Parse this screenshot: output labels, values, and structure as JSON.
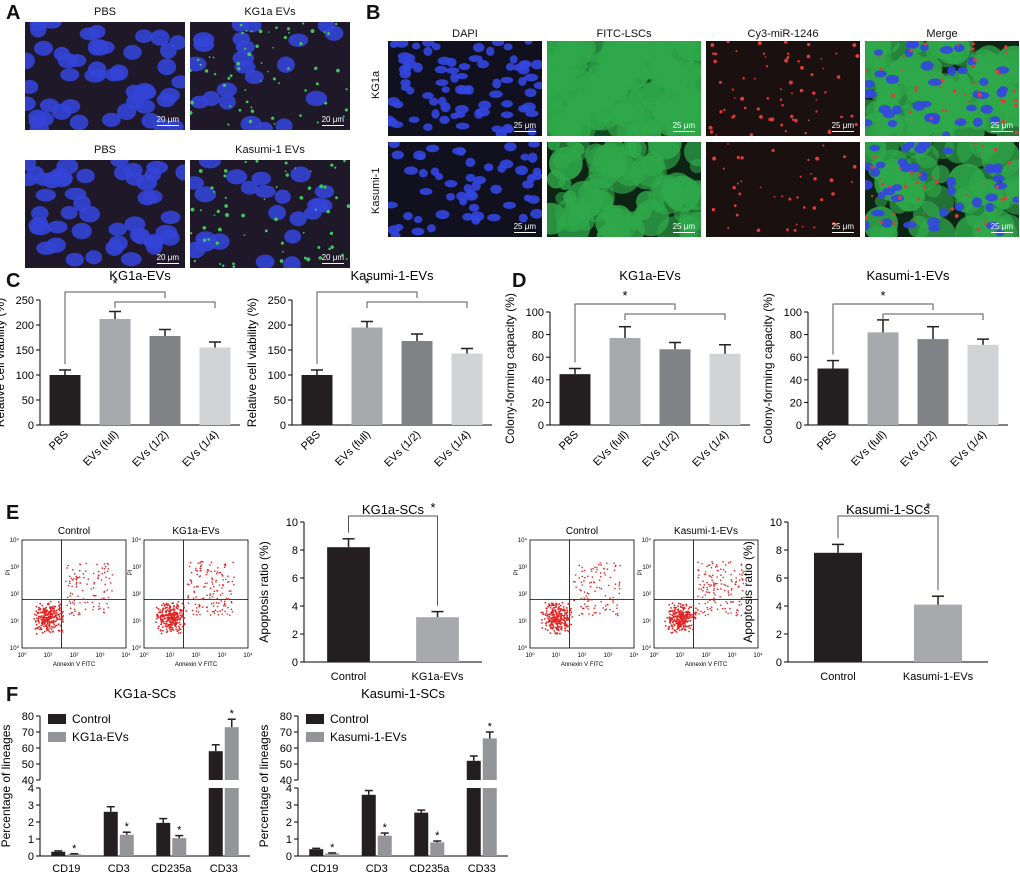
{
  "panels": [
    "A",
    "B",
    "C",
    "D",
    "E",
    "F"
  ],
  "panel_a": {
    "images": [
      {
        "title": "PBS",
        "kind": "pbs",
        "scale": "20 μm"
      },
      {
        "title": "KG1a EVs",
        "kind": "evs",
        "scale": "20 μm"
      },
      {
        "title": "PBS",
        "kind": "pbs",
        "scale": "20 μm"
      },
      {
        "title": "Kasumi-1 EVs",
        "kind": "evs",
        "scale": "20 μm"
      }
    ]
  },
  "panel_b": {
    "columns": [
      "DAPI",
      "FITC-LSCs",
      "Cy3-miR-1246",
      "Merge"
    ],
    "rows": [
      "KG1a",
      "Kasumi-1"
    ],
    "scale": "25 μm"
  },
  "chart_data": [
    {
      "id": "C1",
      "type": "bar",
      "title": "KG1a-EVs",
      "ylabel": "Relative cell viability (%)",
      "categories": [
        "PBS",
        "EVs (full)",
        "EVs (1/2)",
        "EVs (1/4)"
      ],
      "values": [
        100,
        212,
        178,
        155
      ],
      "errors": [
        10,
        15,
        13,
        11
      ],
      "ylim": [
        0,
        250
      ],
      "yticks": [
        0,
        50,
        100,
        150,
        200,
        250
      ],
      "colors": [
        "#231f20",
        "#a7a9ac",
        "#808285",
        "#d1d3d4"
      ],
      "significance": "*"
    },
    {
      "id": "C2",
      "type": "bar",
      "title": "Kasumi-1-EVs",
      "ylabel": "Relative cell viability (%)",
      "categories": [
        "PBS",
        "EVs (full)",
        "EVs (1/2)",
        "EVs (1/4)"
      ],
      "values": [
        100,
        195,
        168,
        143
      ],
      "errors": [
        10,
        12,
        14,
        10
      ],
      "ylim": [
        0,
        250
      ],
      "yticks": [
        0,
        50,
        100,
        150,
        200,
        250
      ],
      "colors": [
        "#231f20",
        "#a7a9ac",
        "#808285",
        "#d1d3d4"
      ],
      "significance": "*"
    },
    {
      "id": "D1",
      "type": "bar",
      "title": "KG1a-EVs",
      "ylabel": "Colony-forming capacity (%)",
      "categories": [
        "PBS",
        "EVs (full)",
        "EVs (1/2)",
        "EVs (1/4)"
      ],
      "values": [
        45,
        77,
        67,
        63
      ],
      "errors": [
        5,
        10,
        6,
        8
      ],
      "ylim": [
        0,
        100
      ],
      "yticks": [
        0,
        20,
        40,
        60,
        80,
        100
      ],
      "colors": [
        "#231f20",
        "#a7a9ac",
        "#808285",
        "#d1d3d4"
      ],
      "significance": "*"
    },
    {
      "id": "D2",
      "type": "bar",
      "title": "Kasumi-1-EVs",
      "ylabel": "Colony-forming capacity (%)",
      "categories": [
        "PBS",
        "EVs (full)",
        "EVs (1/2)",
        "EVs (1/4)"
      ],
      "values": [
        50,
        82,
        76,
        71
      ],
      "errors": [
        7,
        11,
        11,
        5
      ],
      "ylim": [
        0,
        100
      ],
      "yticks": [
        0,
        20,
        40,
        60,
        80,
        100
      ],
      "colors": [
        "#231f20",
        "#a7a9ac",
        "#808285",
        "#d1d3d4"
      ],
      "significance": "*"
    },
    {
      "id": "E1",
      "type": "bar",
      "title": "KG1a-SCs",
      "ylabel": "Apoptosis ratio (%)",
      "categories": [
        "Control",
        "KG1a-EVs"
      ],
      "values": [
        8.2,
        3.2
      ],
      "errors": [
        0.6,
        0.4
      ],
      "ylim": [
        0,
        10
      ],
      "yticks": [
        0,
        2,
        4,
        6,
        8,
        10
      ],
      "colors": [
        "#231f20",
        "#a7a9ac"
      ],
      "significance": "*"
    },
    {
      "id": "E2",
      "type": "bar",
      "title": "Kasumi-1-SCs",
      "ylabel": "Apoptosis ratio (%)",
      "categories": [
        "Control",
        "Kasumi-1-EVs"
      ],
      "values": [
        7.8,
        4.1
      ],
      "errors": [
        0.6,
        0.6
      ],
      "ylim": [
        0,
        10
      ],
      "yticks": [
        0,
        2,
        4,
        6,
        8,
        10
      ],
      "colors": [
        "#231f20",
        "#a7a9ac"
      ],
      "significance": "*"
    },
    {
      "id": "F1",
      "type": "bar",
      "title": "KG1a-SCs",
      "ylabel": "Percentage of lineages",
      "categories": [
        "CD19",
        "CD3",
        "CD235a",
        "CD33"
      ],
      "series": [
        {
          "name": "Control",
          "values": [
            0.25,
            2.6,
            1.95,
            58
          ],
          "errors": [
            0.05,
            0.3,
            0.25,
            4
          ],
          "color": "#231f20"
        },
        {
          "name": "KG1a-EVs",
          "values": [
            0.1,
            1.25,
            1.05,
            73
          ],
          "errors": [
            0.03,
            0.15,
            0.15,
            5
          ],
          "color": "#939598"
        }
      ],
      "broken_axis": {
        "low": [
          0,
          4
        ],
        "high": [
          40,
          80
        ]
      },
      "yticks_low": [
        0,
        1,
        2,
        3,
        4
      ],
      "yticks_high": [
        40,
        50,
        60,
        70,
        80
      ],
      "significance": "*"
    },
    {
      "id": "F2",
      "type": "bar",
      "title": "Kasumi-1-SCs",
      "ylabel": "Percentage of lineages",
      "categories": [
        "CD19",
        "CD3",
        "CD235a",
        "CD33"
      ],
      "series": [
        {
          "name": "Control",
          "values": [
            0.4,
            3.6,
            2.55,
            52
          ],
          "errors": [
            0.05,
            0.25,
            0.15,
            3
          ],
          "color": "#231f20"
        },
        {
          "name": "Kasumi-1-EVs",
          "values": [
            0.15,
            1.2,
            0.8,
            66
          ],
          "errors": [
            0.03,
            0.15,
            0.08,
            4
          ],
          "color": "#939598"
        }
      ],
      "broken_axis": {
        "low": [
          0,
          4
        ],
        "high": [
          40,
          80
        ]
      },
      "yticks_low": [
        0,
        1,
        2,
        3,
        4
      ],
      "yticks_high": [
        40,
        50,
        60,
        70,
        80
      ],
      "significance": "*"
    }
  ],
  "flow_plots": [
    {
      "title": "Control",
      "density": "low"
    },
    {
      "title": "KG1a-EVs",
      "density": "high"
    },
    {
      "title": "Control",
      "density": "low"
    },
    {
      "title": "Kasumi-1-EVs",
      "density": "high"
    }
  ],
  "flow_axes": {
    "x": "Annexin V FITC",
    "y": "PI",
    "ticks": [
      "10⁰",
      "10¹",
      "10²",
      "10³",
      "10⁴"
    ]
  }
}
